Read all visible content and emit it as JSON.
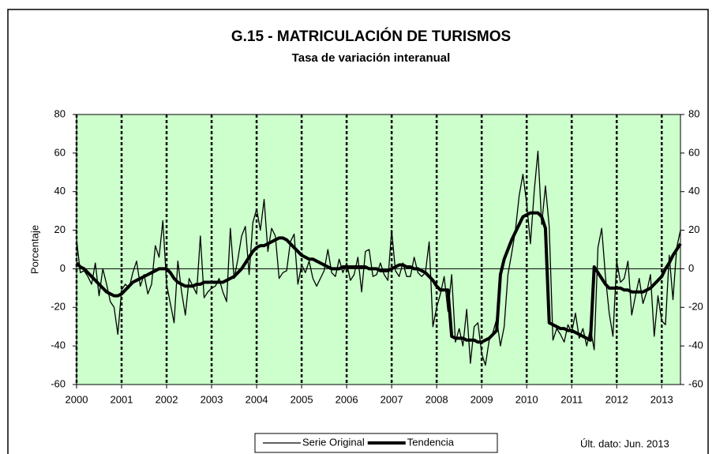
{
  "chart_data": {
    "type": "line",
    "title": "G.15 - MATRICULACIÓN DE TURISMOS",
    "subtitle": "Tasa de variación interanual",
    "y_label": "Porcentaje",
    "note": "Últ. dato: Jun. 2013",
    "categories": [
      "2000",
      null,
      null,
      null,
      null,
      null,
      null,
      null,
      null,
      null,
      null,
      null,
      "2001",
      null,
      null,
      null,
      null,
      null,
      null,
      null,
      null,
      null,
      null,
      null,
      "2002",
      null,
      null,
      null,
      null,
      null,
      null,
      null,
      null,
      null,
      null,
      null,
      "2003",
      null,
      null,
      null,
      null,
      null,
      null,
      null,
      null,
      null,
      null,
      null,
      "2004",
      null,
      null,
      null,
      null,
      null,
      null,
      null,
      null,
      null,
      null,
      null,
      "2005",
      null,
      null,
      null,
      null,
      null,
      null,
      null,
      null,
      null,
      null,
      null,
      "2006",
      null,
      null,
      null,
      null,
      null,
      null,
      null,
      null,
      null,
      null,
      null,
      "2007",
      null,
      null,
      null,
      null,
      null,
      null,
      null,
      null,
      null,
      null,
      null,
      "2008",
      null,
      null,
      null,
      null,
      null,
      null,
      null,
      null,
      null,
      null,
      null,
      "2009",
      null,
      null,
      null,
      null,
      null,
      null,
      null,
      null,
      null,
      null,
      null,
      "2010",
      null,
      null,
      null,
      null,
      null,
      null,
      null,
      null,
      null,
      null,
      null,
      "2011",
      null,
      null,
      null,
      null,
      null,
      null,
      null,
      null,
      null,
      null,
      null,
      "2012",
      null,
      null,
      null,
      null,
      null,
      null,
      null,
      null,
      null,
      null,
      null,
      "2013",
      null,
      null,
      null,
      null,
      null
    ],
    "series": [
      {
        "name": "Serie Original",
        "color": "#000000",
        "width": 1.3,
        "values": [
          15,
          -2,
          -1,
          -4,
          -8,
          3,
          -14,
          0,
          -8,
          -17,
          -20,
          -34,
          -11,
          -8,
          -10,
          -2,
          4,
          -9,
          -3,
          -13,
          -8,
          12,
          6,
          25,
          -8,
          -18,
          -28,
          4,
          -12,
          -24,
          -5,
          -9,
          -13,
          17,
          -15,
          -12,
          -10,
          -9,
          -5,
          -12,
          -17,
          21,
          -5,
          5,
          17,
          22,
          -3,
          24,
          31,
          20,
          36,
          9,
          21,
          17,
          -5,
          -2,
          -1,
          14,
          18,
          -8,
          2,
          -2,
          4,
          -5,
          -9,
          -5,
          -1,
          10,
          -2,
          -4,
          5,
          -2,
          3,
          -6,
          -3,
          6,
          -12,
          9,
          10,
          -4,
          -3,
          3,
          -3,
          -6,
          20,
          -1,
          -4,
          3,
          -4,
          -4,
          6,
          -2,
          -4,
          -2,
          14,
          -30,
          -20,
          -13,
          -4,
          -22,
          -3,
          -38,
          -31,
          -40,
          -21,
          -49,
          -30,
          -28,
          -44,
          -50,
          -37,
          -33,
          -26,
          -40,
          -30,
          -3,
          8,
          20,
          38,
          49,
          34,
          13,
          40,
          61,
          23,
          43,
          22,
          -37,
          -31,
          -34,
          -38,
          -29,
          -33,
          -23,
          -36,
          -31,
          -40,
          -31,
          -42,
          11,
          21,
          -4,
          -23,
          -35,
          4,
          -7,
          -5,
          4,
          -24,
          -14,
          -5,
          -18,
          -12,
          -3,
          -35,
          -14,
          -27,
          -29,
          7,
          -16,
          11,
          20
        ]
      },
      {
        "name": "Tendencia",
        "color": "#000000",
        "width": 4,
        "values": [
          3,
          1,
          0,
          -2,
          -4,
          -6,
          -8,
          -10,
          -12,
          -13,
          -14,
          -14,
          -13,
          -11,
          -9,
          -7,
          -6,
          -5,
          -4,
          -3,
          -2,
          -1,
          0,
          0,
          0,
          -2,
          -5,
          -7,
          -8,
          -9,
          -9,
          -9,
          -8,
          -8,
          -7,
          -7,
          -7,
          -7,
          -7,
          -7,
          -6,
          -5,
          -4,
          -2,
          0,
          3,
          6,
          9,
          11,
          12,
          12,
          13,
          14,
          15,
          16,
          16,
          15,
          13,
          11,
          9,
          7,
          6,
          5,
          5,
          4,
          3,
          2,
          1,
          0,
          0,
          0,
          1,
          1,
          1,
          1,
          1,
          1,
          1,
          0,
          0,
          0,
          -1,
          -1,
          -1,
          0,
          1,
          2,
          2,
          1,
          1,
          0,
          0,
          -1,
          -2,
          -4,
          -6,
          -9,
          -11,
          -11,
          -11,
          -35,
          -36,
          -36,
          -36,
          -37,
          -37,
          -37,
          -38,
          -38,
          -37,
          -36,
          -34,
          -32,
          -3,
          5,
          10,
          15,
          19,
          23,
          27,
          28,
          29,
          29,
          29,
          27,
          21,
          -28,
          -29,
          -30,
          -31,
          -31,
          -32,
          -32,
          -33,
          -34,
          -35,
          -36,
          -37,
          1,
          -2,
          -5,
          -8,
          -10,
          -10,
          -10,
          -10,
          -11,
          -11,
          -12,
          -12,
          -12,
          -12,
          -11,
          -10,
          -8,
          -6,
          -4,
          0,
          3,
          7,
          10,
          13
        ]
      }
    ],
    "ylim": [
      -60,
      80
    ],
    "yticks": [
      -60,
      -40,
      -20,
      0,
      20,
      40,
      60,
      80
    ],
    "y2lim": [
      -60,
      80
    ],
    "y2ticks": [
      -60,
      -40,
      -20,
      0,
      20,
      40,
      60,
      80
    ],
    "background": "#ccffcc",
    "xgrid": "dashed",
    "legend": "bottom"
  }
}
